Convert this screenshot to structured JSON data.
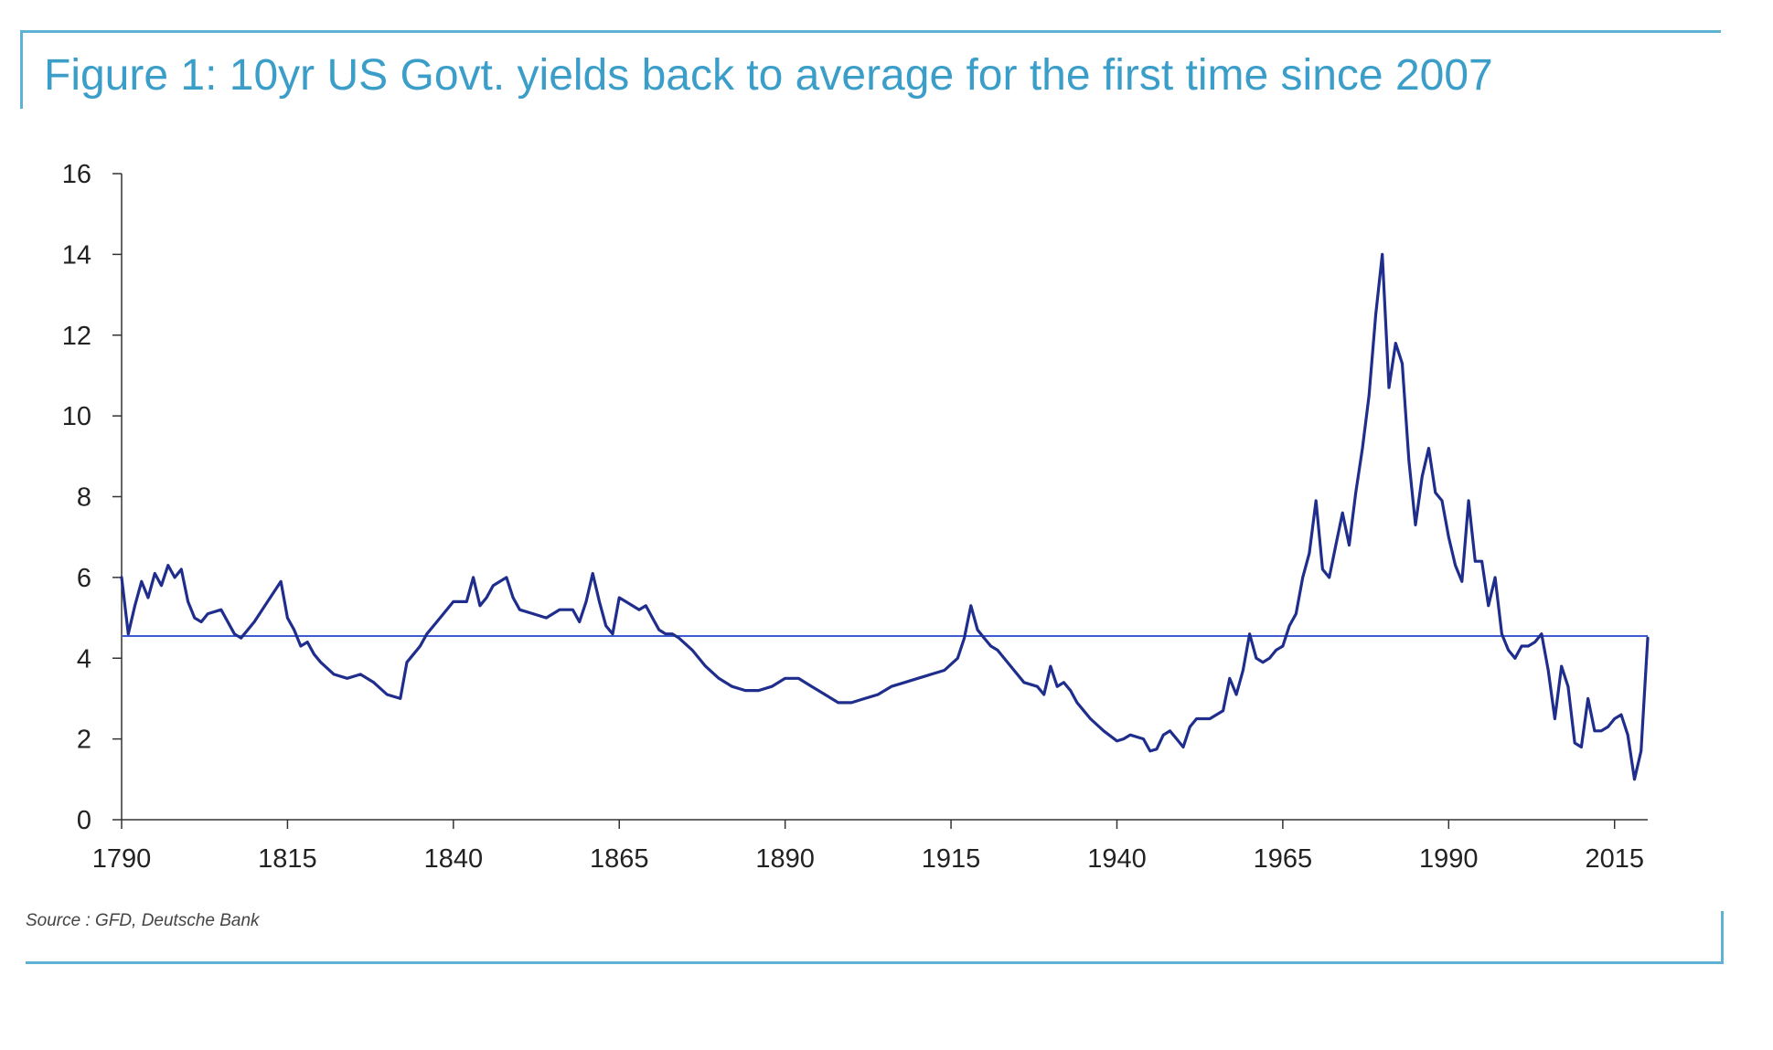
{
  "figure": {
    "title": "Figure 1: 10yr US Govt. yields back to average for the first time since 2007",
    "source": "Source : GFD, Deutsche Bank"
  },
  "colors": {
    "frame": "#5fb2d3",
    "title": "#3a9ec9",
    "series_line": "#1f2d8c",
    "average_line": "#3b5bd0",
    "axis": "#333333"
  },
  "chart_data": {
    "type": "line",
    "title": "Figure 1: 10yr US Govt. yields back to average for the first time since 2007",
    "xlabel": "",
    "ylabel": "",
    "xlim": [
      1790,
      2020
    ],
    "ylim": [
      0,
      16
    ],
    "x_ticks": [
      1790,
      1815,
      1840,
      1865,
      1890,
      1915,
      1940,
      1965,
      1990,
      2015
    ],
    "y_ticks": [
      0,
      2,
      4,
      6,
      8,
      10,
      12,
      14,
      16
    ],
    "grid": false,
    "legend": "none",
    "reference_lines": [
      {
        "value": 4.55
      }
    ],
    "series": [
      {
        "x": [
          1790,
          1791,
          1792,
          1793,
          1794,
          1795,
          1796,
          1797,
          1798,
          1799,
          1800,
          1801,
          1802,
          1803,
          1805,
          1807,
          1808,
          1810,
          1812,
          1814,
          1815,
          1816,
          1817,
          1818,
          1819,
          1820,
          1822,
          1824,
          1826,
          1828,
          1830,
          1832,
          1833,
          1834,
          1835,
          1836,
          1837,
          1838,
          1840,
          1842,
          1843,
          1844,
          1845,
          1846,
          1848,
          1849,
          1850,
          1852,
          1854,
          1856,
          1858,
          1859,
          1860,
          1861,
          1862,
          1863,
          1864,
          1865,
          1866,
          1868,
          1869,
          1870,
          1871,
          1872,
          1873,
          1874,
          1876,
          1878,
          1880,
          1882,
          1884,
          1886,
          1888,
          1890,
          1892,
          1894,
          1896,
          1898,
          1900,
          1902,
          1904,
          1906,
          1908,
          1910,
          1912,
          1914,
          1916,
          1917,
          1918,
          1919,
          1920,
          1921,
          1922,
          1924,
          1926,
          1928,
          1929,
          1930,
          1931,
          1932,
          1933,
          1934,
          1935,
          1936,
          1938,
          1940,
          1941,
          1942,
          1944,
          1945,
          1946,
          1947,
          1948,
          1949,
          1950,
          1951,
          1952,
          1954,
          1956,
          1957,
          1958,
          1959,
          1960,
          1961,
          1962,
          1963,
          1964,
          1965,
          1966,
          1967,
          1968,
          1969,
          1970,
          1971,
          1972,
          1973,
          1974,
          1975,
          1976,
          1977,
          1978,
          1979,
          1980,
          1981,
          1982,
          1983,
          1984,
          1985,
          1986,
          1987,
          1988,
          1989,
          1990,
          1991,
          1992,
          1993,
          1994,
          1995,
          1996,
          1997,
          1998,
          1999,
          2000,
          2001,
          2002,
          2003,
          2004,
          2005,
          2006,
          2007,
          2008,
          2009,
          2010,
          2011,
          2012,
          2013,
          2014,
          2015,
          2016,
          2017,
          2018,
          2019,
          2020
        ],
        "y": [
          6.0,
          4.6,
          5.3,
          5.9,
          5.5,
          6.1,
          5.8,
          6.3,
          6.0,
          6.2,
          5.4,
          5.0,
          4.9,
          5.1,
          5.2,
          4.6,
          4.5,
          4.9,
          5.4,
          5.9,
          5.0,
          4.7,
          4.3,
          4.4,
          4.1,
          3.9,
          3.6,
          3.5,
          3.6,
          3.4,
          3.1,
          3.0,
          3.9,
          4.1,
          4.3,
          4.6,
          4.8,
          5.0,
          5.4,
          5.4,
          6.0,
          5.3,
          5.5,
          5.8,
          6.0,
          5.5,
          5.2,
          5.1,
          5.0,
          5.2,
          5.2,
          4.9,
          5.4,
          6.1,
          5.4,
          4.8,
          4.6,
          5.5,
          5.4,
          5.2,
          5.3,
          5.0,
          4.7,
          4.6,
          4.6,
          4.5,
          4.2,
          3.8,
          3.5,
          3.3,
          3.2,
          3.2,
          3.3,
          3.5,
          3.5,
          3.3,
          3.1,
          2.9,
          2.9,
          3.0,
          3.1,
          3.3,
          3.4,
          3.5,
          3.6,
          3.7,
          4.0,
          4.5,
          5.3,
          4.7,
          4.5,
          4.3,
          4.2,
          3.8,
          3.4,
          3.3,
          3.1,
          3.8,
          3.3,
          3.4,
          3.2,
          2.9,
          2.7,
          2.5,
          2.2,
          1.95,
          2.0,
          2.1,
          2.0,
          1.7,
          1.75,
          2.1,
          2.2,
          2.0,
          1.8,
          2.3,
          2.5,
          2.5,
          2.7,
          3.5,
          3.1,
          3.7,
          4.6,
          4.0,
          3.9,
          4.0,
          4.2,
          4.3,
          4.8,
          5.1,
          6.0,
          6.6,
          7.9,
          6.2,
          6.0,
          6.8,
          7.6,
          6.8,
          8.1,
          9.2,
          10.5,
          12.5,
          14.0,
          10.7,
          11.8,
          11.3,
          8.9,
          7.3,
          8.5,
          9.2,
          8.1,
          7.9,
          7.0,
          6.3,
          5.9,
          7.9,
          6.4,
          6.4,
          5.3,
          6.0,
          4.6,
          4.2,
          4.0,
          4.3,
          4.3,
          4.4,
          4.6,
          3.7,
          2.5,
          3.8,
          3.3,
          1.9,
          1.8,
          3.0,
          2.2,
          2.2,
          2.3,
          2.5,
          2.6,
          2.1,
          1.0,
          1.7,
          4.5
        ]
      }
    ]
  }
}
